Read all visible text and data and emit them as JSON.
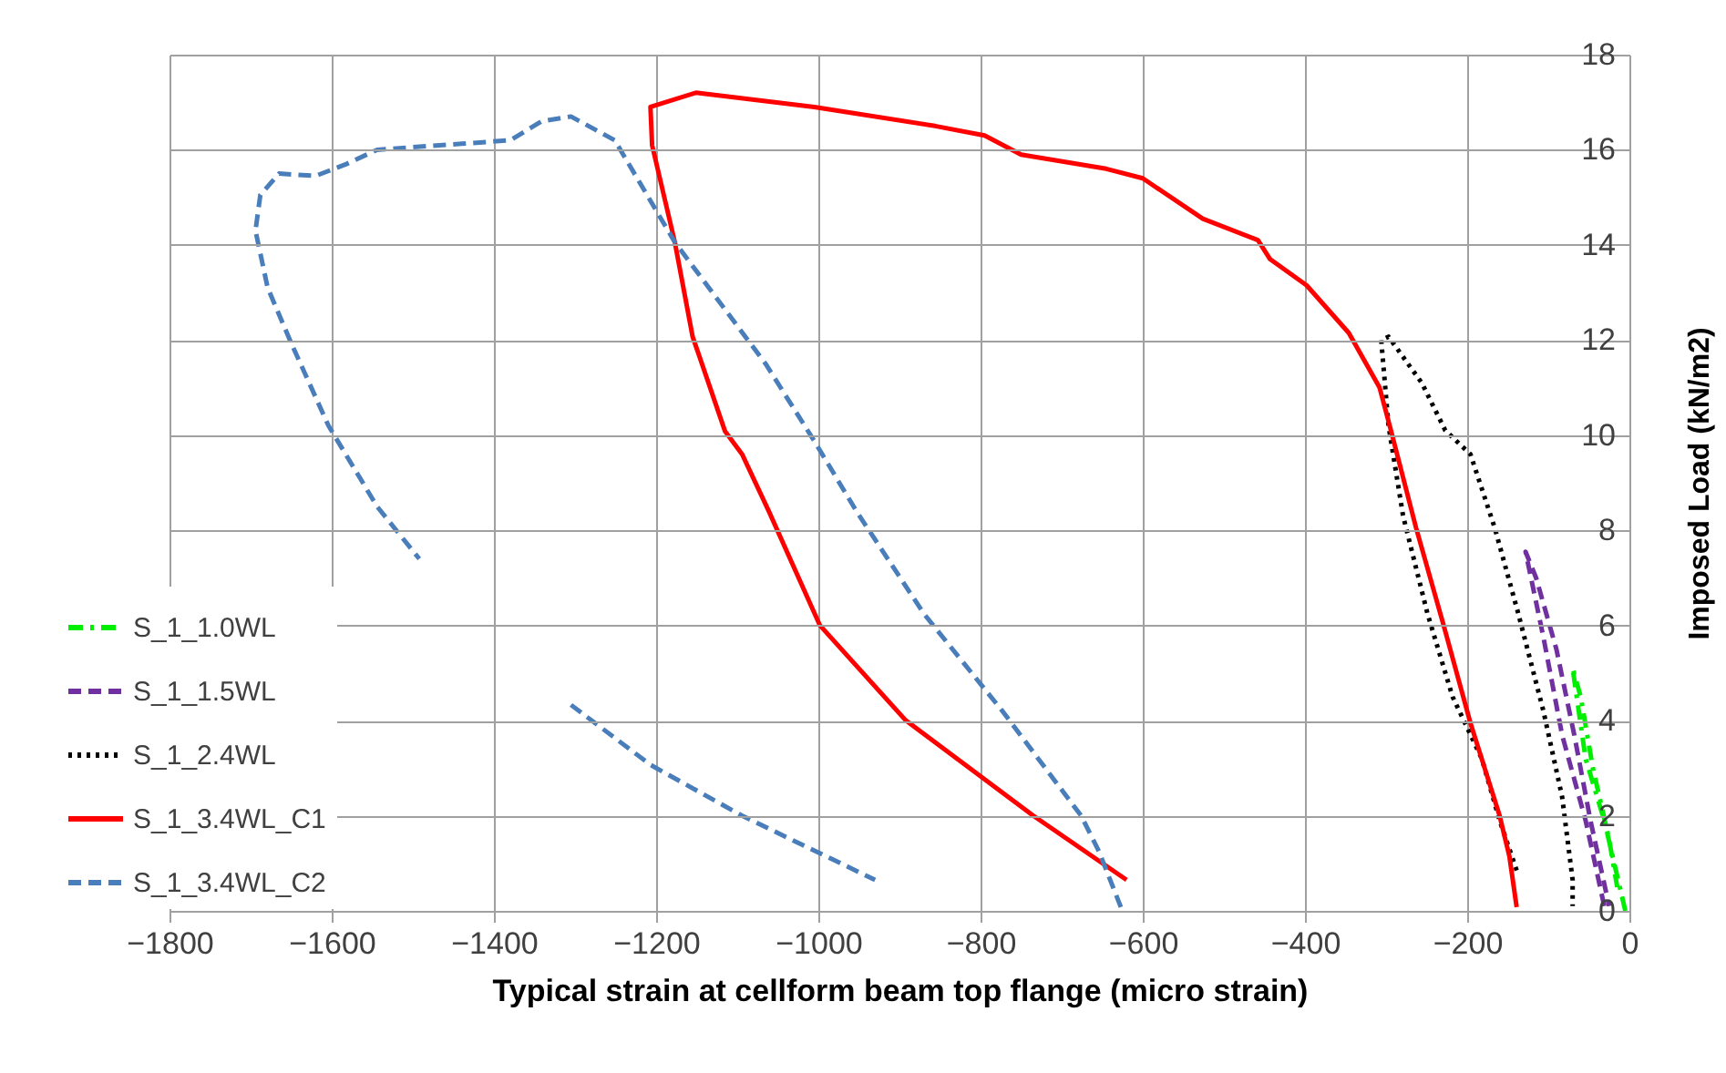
{
  "chart_data": {
    "type": "line",
    "xlabel": "Typical strain at cellform beam top flange (micro strain)",
    "ylabel": "Imposed Load (kN/m2)",
    "xlim": [
      -1800,
      0
    ],
    "xticks": [
      -1800,
      -1600,
      -1400,
      -1200,
      -1000,
      -800,
      -600,
      -400,
      -200,
      0
    ],
    "ylim": [
      0,
      18
    ],
    "yticks": [
      0,
      2,
      4,
      6,
      8,
      10,
      12,
      14,
      16,
      18
    ],
    "grid": true,
    "legend": "bottom left",
    "marker": "none",
    "series": [
      {
        "name": "S_1_1.0WL",
        "color": "#00ee00",
        "line_style": "dashdot",
        "x": [
          -5,
          -31,
          -54,
          -70,
          -60,
          -45,
          -25,
          -15
        ],
        "values": [
          0,
          1.9,
          3.2,
          5.1,
          4.5,
          3.0,
          1.5,
          0.5
        ]
      },
      {
        "name": "S_1_1.5WL",
        "color": "#7030a0",
        "line_style": "dashed",
        "x": [
          -31,
          -54,
          -83,
          -106,
          -128,
          -115,
          -90,
          -68,
          -48,
          -25
        ],
        "values": [
          0.1,
          1.9,
          3.7,
          5.75,
          7.55,
          7.0,
          5.5,
          3.7,
          1.9,
          0.1
        ]
      },
      {
        "name": "S_1_2.4WL",
        "color": "#000000",
        "line_style": "dotted",
        "x": [
          -139,
          -160,
          -182,
          -218,
          -249,
          -279,
          -297,
          -306,
          -297,
          -256,
          -227,
          -196,
          -166,
          -137,
          -106,
          -83,
          -70,
          -70
        ],
        "values": [
          0.85,
          1.9,
          3.2,
          4.5,
          6.25,
          8.3,
          10.2,
          12.0,
          12.07,
          11.1,
          10.1,
          9.6,
          8.05,
          6.25,
          4.2,
          2.4,
          0.65,
          0.1
        ]
      },
      {
        "name": "S_1_3.4WL_C1",
        "color": "#ff0000",
        "line_style": "solid",
        "x": [
          -139,
          -148,
          -160,
          -196,
          -229,
          -263,
          -294,
          -308,
          -346,
          -398,
          -443,
          -458,
          -526,
          -600,
          -645,
          -750,
          -795,
          -856,
          -1005,
          -1151,
          -1207,
          -1205,
          -1177,
          -1155,
          -1115,
          -1094,
          -1061,
          -998,
          -892,
          -735,
          -620
        ],
        "values": [
          0.08,
          1.15,
          2.0,
          3.95,
          6.0,
          8.05,
          10.1,
          11.0,
          12.15,
          13.15,
          13.7,
          14.1,
          14.55,
          15.4,
          15.6,
          15.9,
          16.3,
          16.5,
          16.9,
          17.2,
          16.9,
          16.1,
          14.06,
          12.07,
          10.08,
          9.6,
          8.4,
          6.0,
          4.0,
          2.0,
          0.65
        ]
      },
      {
        "name": "S_1_3.4WL_C2",
        "color": "#4a7ebb",
        "line_style": "dashed",
        "x": [
          -627,
          -654,
          -676,
          -773,
          -870,
          -953,
          -1004,
          -1065,
          -1177,
          -1251,
          -1305,
          -1341,
          -1380,
          -1544,
          -1582,
          -1620,
          -1665,
          -1688,
          -1694,
          -1679,
          -1649,
          -1604,
          -1544,
          -1492,
          null,
          -1305,
          -1207,
          -1094,
          -930
        ],
        "values": [
          0.08,
          1.25,
          2.0,
          4.2,
          6.25,
          8.4,
          9.85,
          11.5,
          14.06,
          16.2,
          16.7,
          16.6,
          16.2,
          16.0,
          15.7,
          15.45,
          15.5,
          15.05,
          14.3,
          13.1,
          11.9,
          10.2,
          8.5,
          7.4,
          null,
          4.33,
          3.07,
          2.0,
          0.65
        ]
      }
    ]
  }
}
